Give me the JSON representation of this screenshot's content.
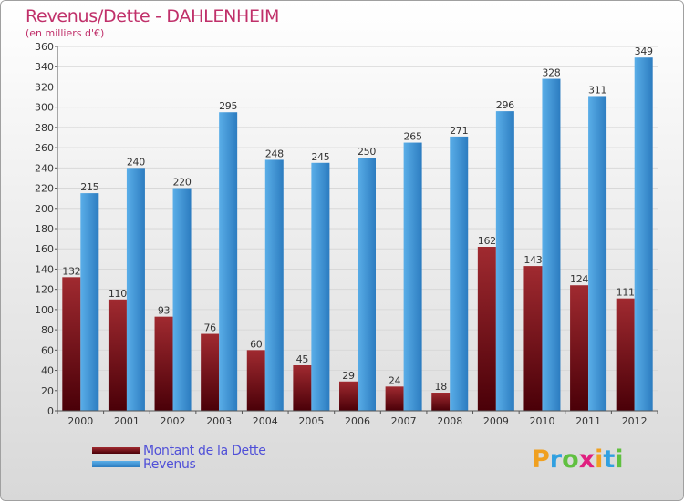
{
  "colors": {
    "background_top": "#ffffff",
    "background_bottom": "#d8d8d8",
    "series_dette": "#7a1018",
    "series_revenus": "#4aa0e0",
    "title": "#c0306a",
    "legend_text": "#5050d8"
  },
  "logo": {
    "letters": [
      "P",
      "r",
      "o",
      "x",
      "i",
      "t",
      "i"
    ],
    "colors": [
      "#f0a020",
      "#30a0e0",
      "#60c040",
      "#e02080",
      "#f0a020",
      "#30a0e0",
      "#60c040"
    ]
  },
  "chart_data": {
    "type": "bar",
    "title": "Revenus/Dette - DAHLENHEIM",
    "subtitle": "(en milliers d'€)",
    "xlabel": "",
    "ylabel": "",
    "ylim": [
      0,
      360
    ],
    "ytick_step": 20,
    "grid": true,
    "legend_position": "bottom-left",
    "categories": [
      "2000",
      "2001",
      "2002",
      "2003",
      "2004",
      "2005",
      "2006",
      "2007",
      "2008",
      "2009",
      "2010",
      "2011",
      "2012"
    ],
    "series": [
      {
        "name": "Montant de la Dette",
        "color": "#7a1018",
        "values": [
          132,
          110,
          93,
          76,
          60,
          45,
          29,
          24,
          18,
          162,
          143,
          124,
          111
        ]
      },
      {
        "name": "Revenus",
        "color": "#4aa0e0",
        "values": [
          215,
          240,
          220,
          295,
          248,
          245,
          250,
          265,
          271,
          296,
          328,
          311,
          349
        ]
      }
    ]
  }
}
